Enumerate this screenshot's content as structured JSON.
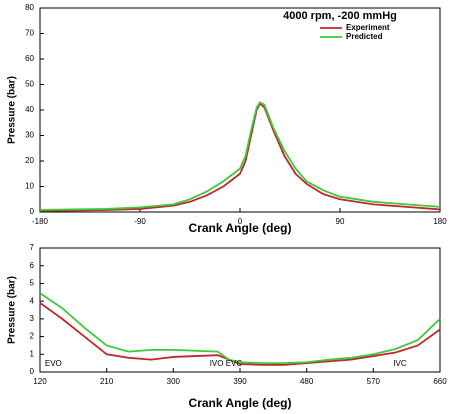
{
  "chart_data": [
    {
      "type": "line",
      "title": "4000 rpm,  -200 mmHg",
      "x_label": "Crank Angle (deg)",
      "y_label": "Pressure (bar)",
      "x": [
        -180,
        -150,
        -120,
        -90,
        -60,
        -45,
        -30,
        -15,
        0,
        5,
        10,
        15,
        18,
        22,
        30,
        40,
        50,
        60,
        75,
        90,
        120,
        150,
        180
      ],
      "series": [
        {
          "name": "Experiment",
          "color": "#c0282d",
          "values": [
            0.5,
            0.6,
            0.8,
            1.2,
            2.5,
            4,
            6.5,
            10,
            15,
            20,
            30,
            40,
            42.5,
            41,
            32,
            22,
            15,
            11,
            7,
            5,
            3,
            2,
            1
          ]
        },
        {
          "name": "Predicted",
          "color": "#3ec93a",
          "values": [
            0.8,
            1,
            1.2,
            1.8,
            3,
            5,
            8,
            12,
            17,
            22,
            32,
            41,
            43,
            42,
            33,
            24,
            17,
            12,
            8.5,
            6,
            4,
            3,
            2
          ]
        }
      ],
      "xlim": [
        -180,
        180
      ],
      "xticks": [
        -180,
        -90,
        0,
        90,
        180
      ],
      "ylim": [
        0,
        80
      ],
      "yticks": [
        0,
        10,
        20,
        30,
        40,
        50,
        60,
        70,
        80
      ],
      "legend": "upper right",
      "grid": false
    },
    {
      "type": "line",
      "x_label": "Crank Angle (deg)",
      "y_label": "Pressure (bar)",
      "x": [
        120,
        150,
        180,
        210,
        240,
        270,
        300,
        330,
        360,
        375,
        390,
        420,
        450,
        480,
        510,
        540,
        570,
        600,
        630,
        660
      ],
      "series": [
        {
          "name": "Experiment",
          "color": "#c0282d",
          "values": [
            3.9,
            3.0,
            2.0,
            1.0,
            0.8,
            0.7,
            0.85,
            0.9,
            0.95,
            0.7,
            0.45,
            0.4,
            0.4,
            0.5,
            0.6,
            0.7,
            0.9,
            1.1,
            1.5,
            2.4
          ]
        },
        {
          "name": "Predicted",
          "color": "#3ec93a",
          "values": [
            4.45,
            3.6,
            2.5,
            1.5,
            1.15,
            1.25,
            1.25,
            1.2,
            1.15,
            0.7,
            0.55,
            0.5,
            0.5,
            0.55,
            0.7,
            0.8,
            1.0,
            1.3,
            1.8,
            3.0
          ]
        }
      ],
      "xlim": [
        120,
        660
      ],
      "xticks": [
        120,
        210,
        300,
        390,
        480,
        570,
        660
      ],
      "ylim": [
        0,
        7
      ],
      "yticks": [
        0,
        1,
        2,
        3,
        4,
        5,
        6,
        7
      ],
      "annotations": [
        {
          "text": "EVO",
          "x": 138
        },
        {
          "text": "IVO EVC",
          "x": 371
        },
        {
          "text": "IVC",
          "x": 606
        }
      ],
      "grid": false
    }
  ]
}
